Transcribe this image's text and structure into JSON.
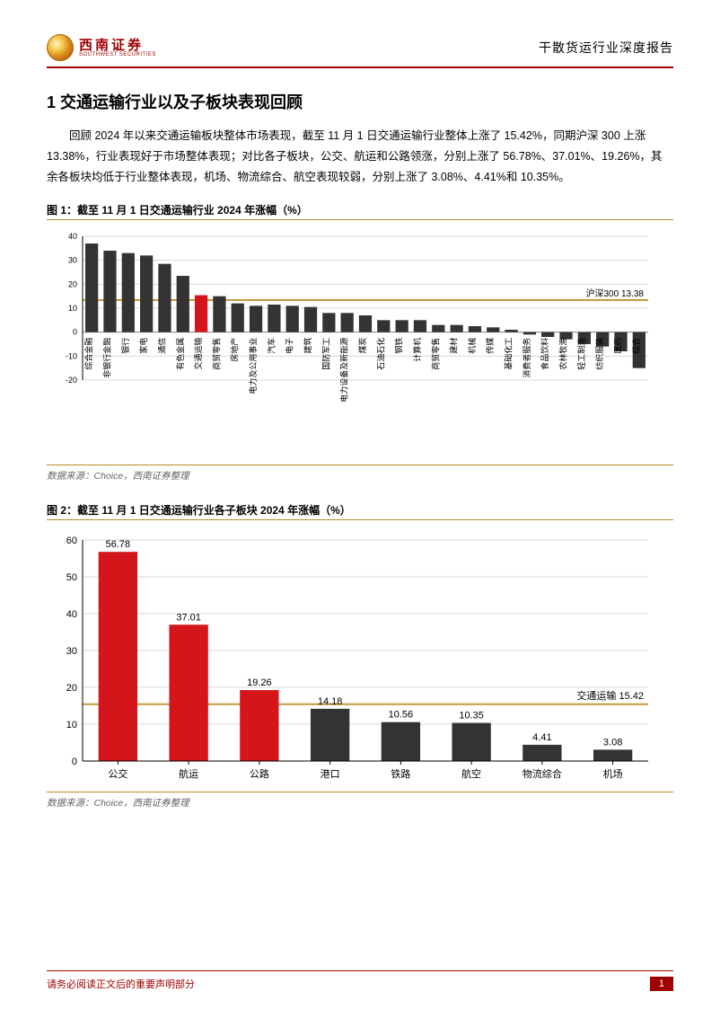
{
  "header": {
    "logo_cn": "西南证券",
    "logo_en": "SOUTHWEST SECURITIES",
    "report_type": "干散货运行业深度报告"
  },
  "section": {
    "number": "1",
    "title": "交通运输行业以及子板块表现回顾",
    "full_title": "1 交通运输行业以及子板块表现回顾"
  },
  "body_paragraph": "回顾 2024 年以来交通运输板块整体市场表现，截至 11 月 1 日交通运输行业整体上涨了 15.42%，同期沪深 300 上涨 13.38%，行业表现好于市场整体表现；对比各子板块，公交、航运和公路领涨，分别上涨了 56.78%、37.01%、19.26%，其余各板块均低于行业整体表现，机场、物流综合、航空表现较弱，分别上涨了 3.08%、4.41%和 10.35%。",
  "chart1": {
    "title": "图 1：截至 11 月 1 日交通运输行业 2024 年涨幅（%）",
    "type": "bar",
    "categories": [
      "综合金融",
      "非银行金融",
      "银行",
      "家电",
      "通信",
      "有色金属",
      "交通运输",
      "商贸零售",
      "房地产",
      "电力及公用事业",
      "汽车",
      "电子",
      "建筑",
      "国防军工",
      "电力设备及新能源",
      "煤炭",
      "石油石化",
      "钢铁",
      "计算机",
      "商贸零售",
      "建材",
      "机械",
      "传媒",
      "基础化工",
      "消费者服务",
      "食品饮料",
      "农林牧渔",
      "轻工制造",
      "纺织服装",
      "医药",
      "综合"
    ],
    "values": [
      37,
      34,
      33,
      32,
      28.5,
      23.5,
      15.42,
      15,
      12,
      11,
      11.5,
      11,
      10.5,
      8,
      8,
      7,
      5,
      5,
      5,
      3,
      3,
      2.5,
      2,
      1,
      -1,
      -2,
      -3,
      -5,
      -6,
      -8,
      -15
    ],
    "highlight_index": 6,
    "highlight_color": "#d4161c",
    "bar_color": "#333333",
    "yaxis": {
      "min": -20,
      "max": 40,
      "step": 10
    },
    "ref_line": {
      "value": 13.38,
      "label": "沪深300   13.38",
      "color": "#c49a3a"
    },
    "axis_font_size": 9,
    "label_rotation": -90,
    "grid_color": "#d9d9d9",
    "background": "#ffffff",
    "data_source": "数据来源：Choice，西南证券整理"
  },
  "chart2": {
    "title": "图 2：截至 11 月 1 日交通运输行业各子板块 2024 年涨幅（%）",
    "type": "bar",
    "categories": [
      "公交",
      "航运",
      "公路",
      "港口",
      "铁路",
      "航空",
      "物流综合",
      "机场"
    ],
    "values": [
      56.78,
      37.01,
      19.26,
      14.18,
      10.56,
      10.35,
      4.41,
      3.08
    ],
    "highlight_color": "#d4161c",
    "bar_color": "#333333",
    "highlight_above": 15.42,
    "yaxis": {
      "min": 0,
      "max": 60,
      "step": 10
    },
    "ref_line": {
      "value": 15.42,
      "label": "交通运输   15.42",
      "color": "#c49a3a"
    },
    "axis_font_size": 11,
    "grid_color": "#d9d9d9",
    "background": "#ffffff",
    "data_source": "数据来源：Choice，西南证券整理"
  },
  "footer": {
    "disclaimer": "请务必阅读正文后的重要声明部分",
    "page": "1"
  }
}
